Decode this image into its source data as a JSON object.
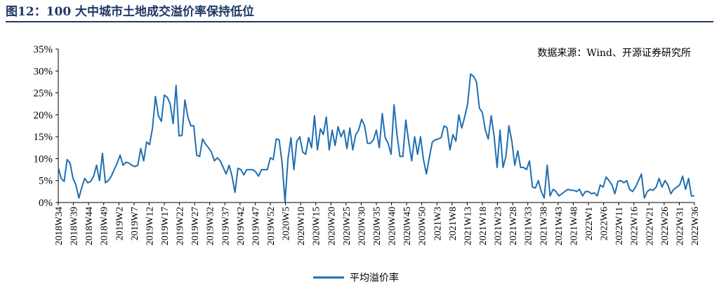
{
  "header": {
    "title": "图12：100 大中城市土地成交溢价率保持低位"
  },
  "colors": {
    "line": "#1f6fb3",
    "title": "#1f3864"
  },
  "chart_data": {
    "type": "line",
    "title": "",
    "xlabel": "",
    "ylabel": "",
    "ylim": [
      0,
      35
    ],
    "yticks": [
      "0%",
      "5%",
      "10%",
      "15%",
      "20%",
      "25%",
      "30%",
      "35%"
    ],
    "source": "数据来源：Wind、开源证券研究所",
    "legend": {
      "label": "平均溢价率",
      "position": "bottom-center"
    },
    "grid": false,
    "x_tick_labels": [
      "2018W34",
      "2018W39",
      "2018W44",
      "2018W49",
      "2019W2",
      "2019W7",
      "2019W12",
      "2019W17",
      "2019W22",
      "2019W27",
      "2019W32",
      "2019W37",
      "2019W42",
      "2019W47",
      "2019W52",
      "2020W5",
      "2020W10",
      "2020W15",
      "2020W20",
      "2020W25",
      "2020W30",
      "2020W35",
      "2020W40",
      "2020W45",
      "2020W50",
      "2021W3",
      "2021W8",
      "2021W13",
      "2021W18",
      "2021W23",
      "2021W28",
      "2021W33",
      "2021W38",
      "2021W43",
      "2021W48",
      "2022W1",
      "2022W6",
      "2022W11",
      "2022W16",
      "2022W21",
      "2022W26",
      "2022W31",
      "2022W36"
    ],
    "series": [
      {
        "name": "平均溢价率",
        "values": [
          8,
          5.5,
          4.8,
          9.8,
          9,
          5.5,
          4,
          1,
          3.5,
          5.5,
          4.5,
          4.8,
          6,
          8.5,
          5,
          11.2,
          4.5,
          5,
          6,
          7.5,
          9,
          10.8,
          8.5,
          9.2,
          9,
          8.5,
          8.2,
          8.5,
          12.3,
          9.5,
          13.8,
          13.2,
          17,
          24.2,
          19.8,
          18.5,
          24.5,
          24,
          22.5,
          18,
          26.7,
          15.2,
          15.3,
          23.4,
          19.5,
          17.5,
          17.5,
          10.8,
          10.5,
          14.5,
          13.3,
          12.5,
          11.5,
          9.5,
          10.2,
          9.5,
          8,
          6.5,
          8.5,
          6,
          2.3,
          7.8,
          7.5,
          6.3,
          7.5,
          7.5,
          7.5,
          7,
          6,
          7.5,
          7.5,
          7.5,
          10.2,
          9.8,
          14.5,
          14.3,
          9,
          0.2,
          10,
          14.8,
          7.5,
          14,
          15,
          11.5,
          11,
          14.8,
          12.5,
          19.8,
          12,
          16.8,
          15.5,
          19.5,
          12,
          16.5,
          13,
          17.3,
          15,
          16.5,
          12.3,
          17,
          12,
          15.5,
          16.5,
          19,
          17.5,
          13.5,
          13.5,
          14.3,
          16.5,
          12.5,
          20.3,
          14.8,
          13.5,
          11,
          22.3,
          15.5,
          10.5,
          10.5,
          18.8,
          13.8,
          9.5,
          15,
          11,
          15,
          9.8,
          6.5,
          10.3,
          13.8,
          14.3,
          14.5,
          14.8,
          17.5,
          17,
          12,
          15.5,
          14,
          20,
          17,
          19.5,
          22.5,
          29.3,
          28.8,
          27.5,
          21.5,
          20.5,
          16.5,
          14.5,
          19.8,
          15,
          8,
          16.5,
          8,
          10.5,
          17.5,
          14,
          8.5,
          11.8,
          8,
          8,
          7.5,
          9.5,
          3.5,
          3.3,
          5,
          2.5,
          1,
          8.5,
          1.5,
          3,
          2.5,
          1.5,
          2,
          2.5,
          3,
          2.8,
          2.8,
          2.5,
          3,
          1.5,
          2.5,
          2.5,
          2,
          2.2,
          1.5,
          4,
          3.5,
          5.8,
          5,
          4,
          2,
          4.8,
          5,
          4.5,
          5,
          3,
          2.5,
          3.5,
          5,
          6.5,
          1,
          2.5,
          3,
          2.8,
          3.5,
          5.5,
          3.5,
          5,
          4,
          2,
          3,
          3.5,
          4,
          6,
          3,
          5.5,
          1.5,
          1.5
        ]
      }
    ]
  }
}
